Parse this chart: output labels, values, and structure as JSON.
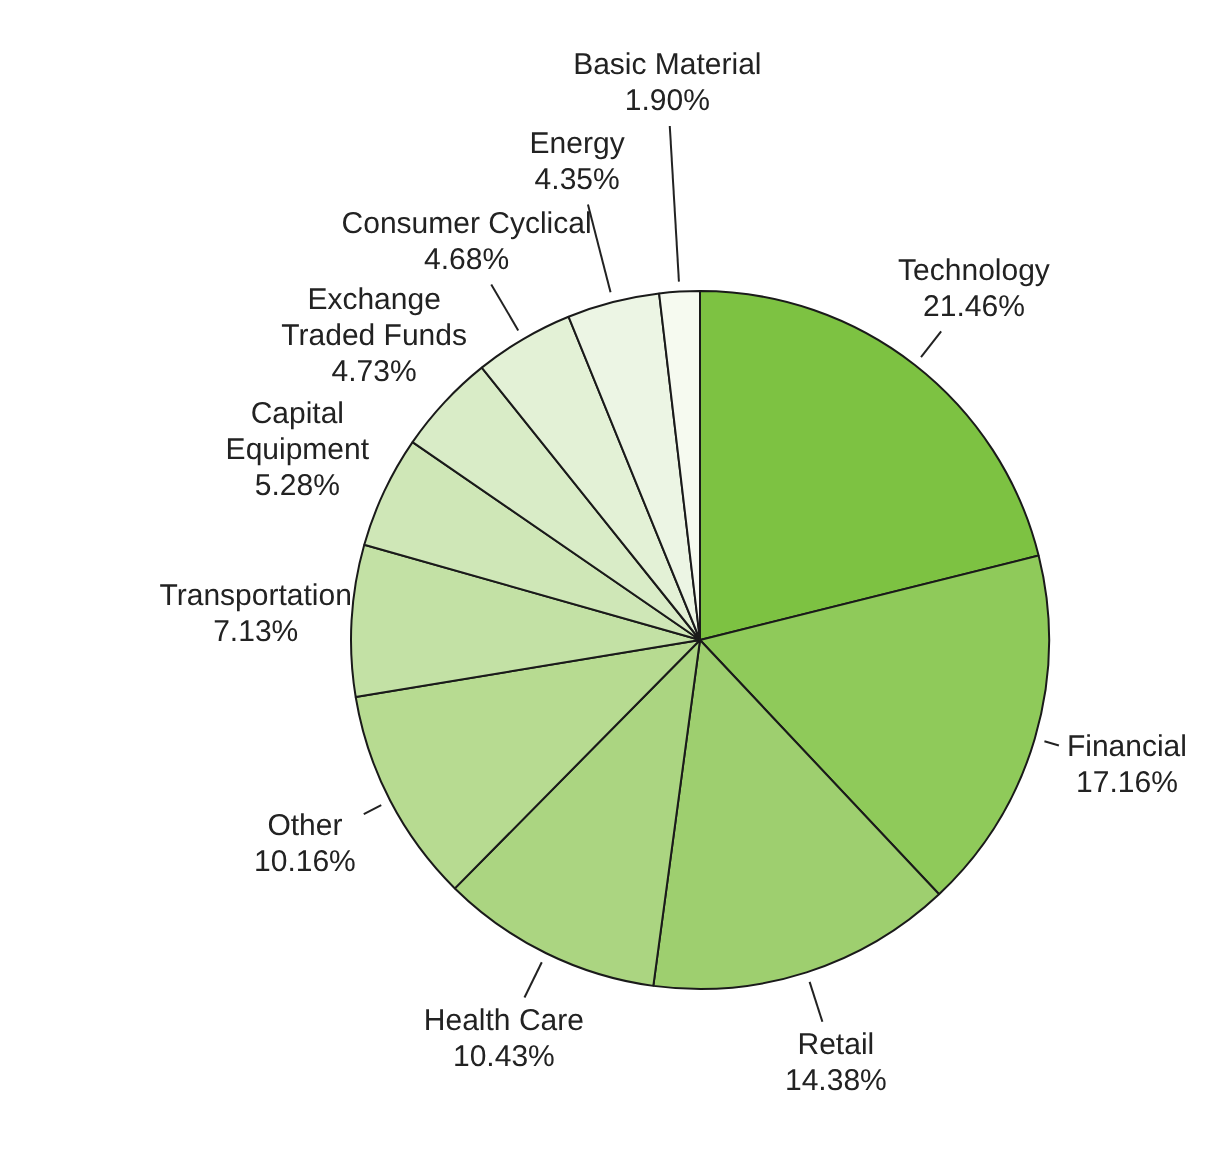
{
  "chart_data": {
    "type": "pie",
    "categories": [
      "Technology",
      "Financial",
      "Retail",
      "Health Care",
      "Other",
      "Transportation",
      "Capital Equipment",
      "Exchange Traded Funds",
      "Consumer Cyclical",
      "Energy",
      "Basic Material"
    ],
    "values": [
      21.46,
      17.16,
      14.38,
      10.43,
      10.16,
      7.13,
      5.28,
      4.73,
      4.68,
      4.35,
      1.9
    ],
    "value_labels": [
      "21.46%",
      "17.16%",
      "14.38%",
      "10.43%",
      "10.16%",
      "7.13%",
      "5.28%",
      "4.73%",
      "4.68%",
      "4.35%",
      "1.90%"
    ],
    "colors": [
      "#7dc242",
      "#8fca5a",
      "#9ecf6f",
      "#abd581",
      "#b7db91",
      "#c3e1a5",
      "#cfe7b7",
      "#d9ecc7",
      "#e3f1d6",
      "#ecf5e4",
      "#f6faf0"
    ],
    "legend": false
  }
}
